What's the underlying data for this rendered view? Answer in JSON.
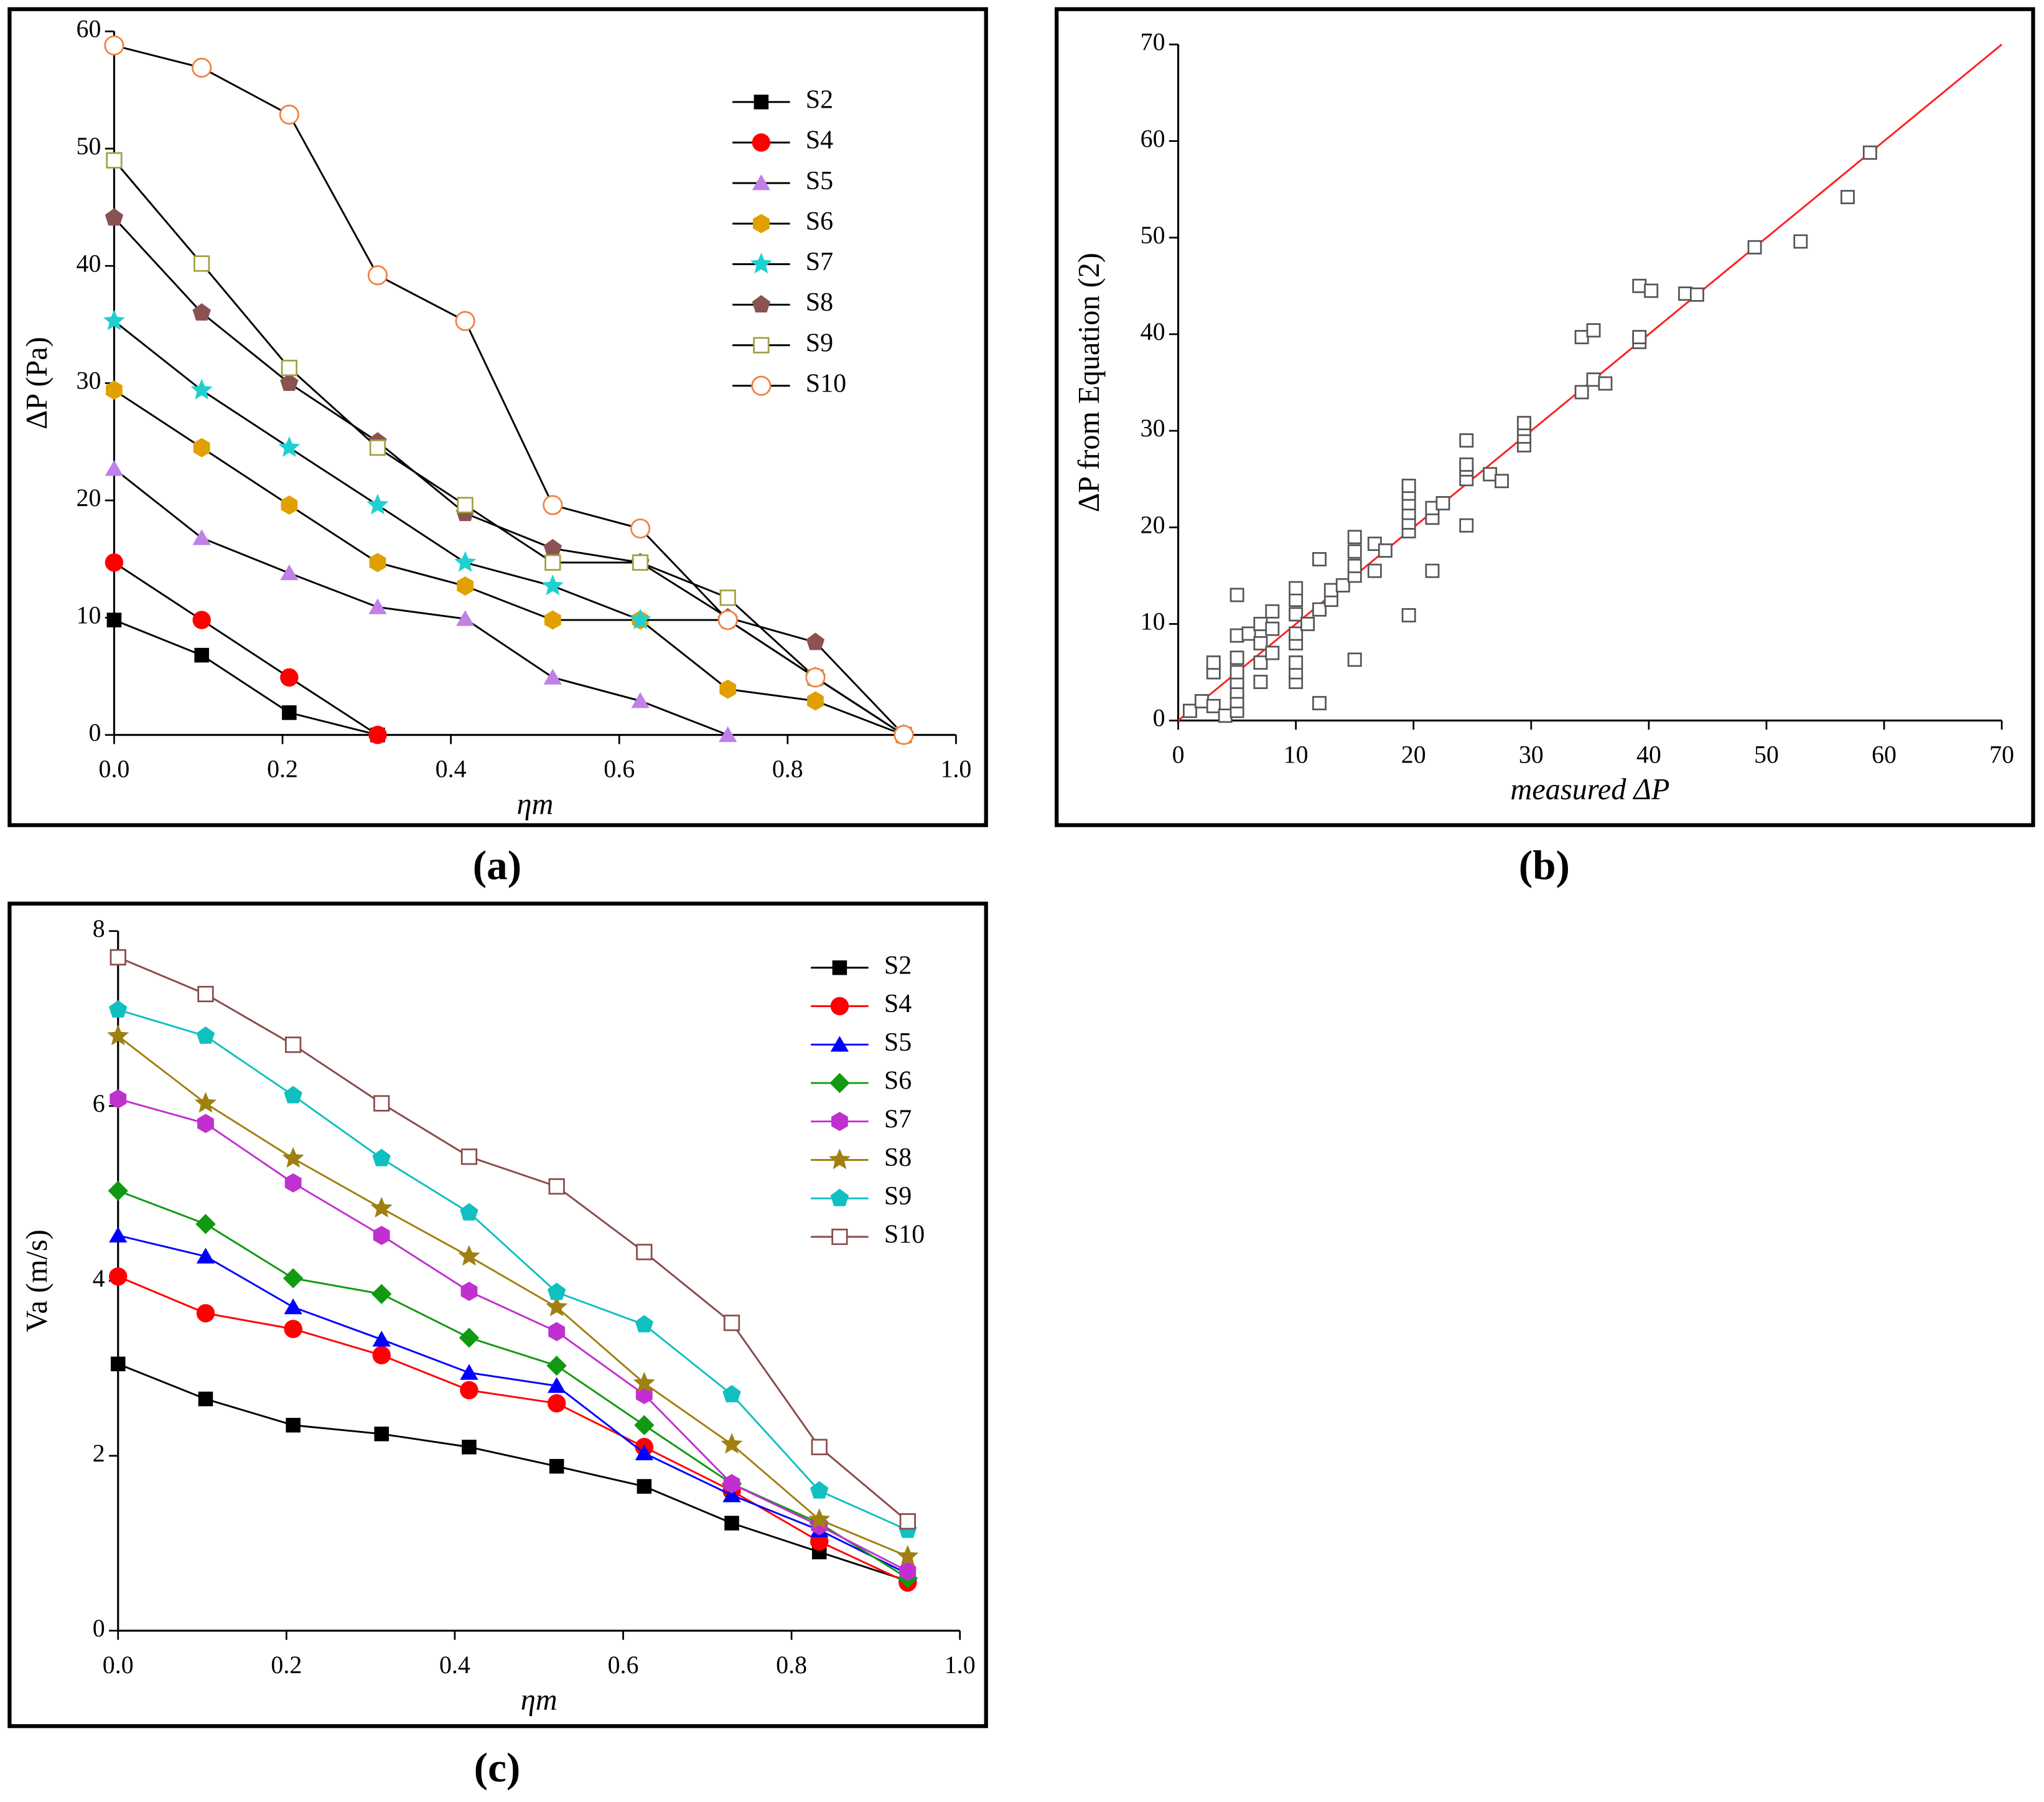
{
  "chart_data": [
    {
      "type": "line",
      "panel_label": "(a)",
      "xlabel": "ηm",
      "ylabel": "ΔP (Pa)",
      "x": [
        0,
        0.104,
        0.208,
        0.313,
        0.417,
        0.521,
        0.625,
        0.729,
        0.833,
        0.938
      ],
      "xlim": [
        0,
        1.0
      ],
      "ylim": [
        0,
        60
      ],
      "xticks": [
        {
          "value": 0,
          "label": "0.0"
        },
        0.2,
        0.4,
        0.6,
        0.8,
        {
          "value": 1,
          "label": "1.0"
        }
      ],
      "yticks": [
        0,
        10,
        20,
        30,
        40,
        50,
        60
      ],
      "legend": "upper right",
      "line_color": "#000000",
      "series": [
        {
          "name": "S2",
          "color": "#000000",
          "marker": "square",
          "filled": true,
          "values": [
            9.8,
            6.8,
            1.9,
            0,
            null,
            null,
            null,
            null,
            null,
            null
          ]
        },
        {
          "name": "S4",
          "color": "#ff0000",
          "marker": "circle",
          "filled": true,
          "values": [
            14.7,
            9.8,
            4.9,
            0,
            null,
            null,
            null,
            null,
            null,
            null
          ]
        },
        {
          "name": "S5",
          "color": "#c080e8",
          "marker": "triangle",
          "filled": true,
          "values": [
            22.7,
            16.8,
            13.8,
            10.9,
            9.9,
            4.9,
            2.9,
            0,
            null,
            null
          ]
        },
        {
          "name": "S6",
          "color": "#e0a000",
          "marker": "hexagon",
          "filled": true,
          "values": [
            29.4,
            24.5,
            19.6,
            14.7,
            12.7,
            9.8,
            9.8,
            3.9,
            2.9,
            0
          ]
        },
        {
          "name": "S7",
          "color": "#20d0d0",
          "marker": "star",
          "filled": true,
          "values": [
            35.3,
            29.4,
            24.5,
            19.6,
            14.7,
            12.7,
            9.8,
            9.8,
            4.9,
            0
          ]
        },
        {
          "name": "S8",
          "color": "#8b5252",
          "marker": "pentagon",
          "filled": true,
          "values": [
            44.1,
            36,
            30,
            25,
            18.9,
            15.9,
            14.7,
            10,
            7.9,
            0
          ]
        },
        {
          "name": "S9",
          "color": "#a0a040",
          "marker": "square",
          "filled": false,
          "values": [
            49,
            40.2,
            31.3,
            24.5,
            19.6,
            14.7,
            14.7,
            11.7,
            4.9,
            0
          ]
        },
        {
          "name": "S10",
          "color": "#f08040",
          "marker": "circle",
          "filled": false,
          "values": [
            58.8,
            56.9,
            52.9,
            39.2,
            35.3,
            19.6,
            17.6,
            9.8,
            4.9,
            0
          ]
        }
      ]
    },
    {
      "type": "scatter",
      "panel_label": "(b)",
      "xlabel": "measured ΔP",
      "ylabel": "ΔP from Equation (2)",
      "xlim": [
        0,
        70
      ],
      "ylim": [
        0,
        70
      ],
      "xticks": [
        0,
        10,
        20,
        30,
        40,
        50,
        60,
        70
      ],
      "yticks": [
        0,
        10,
        20,
        30,
        40,
        50,
        60,
        70
      ],
      "color": "#555555",
      "marker": "square",
      "filled": false,
      "x": [
        1,
        2,
        3,
        3,
        3,
        4,
        5,
        5,
        5,
        5,
        5,
        5,
        5,
        5,
        6,
        7,
        7,
        7,
        7,
        8,
        8,
        8,
        10,
        10,
        10,
        10,
        10,
        10,
        10,
        10,
        11,
        12,
        12,
        12,
        13,
        13,
        14,
        15,
        15,
        15,
        15,
        15,
        16.7,
        16.7,
        17.6,
        19.6,
        19.6,
        19.6,
        19.6,
        19.6,
        19.6,
        19.6,
        21.6,
        21.6,
        21.6,
        22.5,
        24.5,
        24.5,
        24.5,
        24.5,
        24.5,
        26.5,
        27.5,
        29.4,
        29.4,
        29.4,
        29.4,
        34.3,
        34.3,
        35.3,
        35.3,
        36.3,
        39.2,
        39.2,
        39.2,
        40.2,
        43.1,
        44.1,
        49,
        52.9,
        56.9,
        58.8
      ],
      "y": [
        1,
        2,
        1.5,
        5,
        6,
        0.5,
        1,
        2,
        3,
        4,
        5,
        6.5,
        8.8,
        13,
        9,
        4,
        6,
        8,
        10,
        7,
        9.5,
        11.3,
        4,
        5,
        6,
        8,
        9,
        11,
        12.5,
        13.7,
        10,
        1.8,
        11.5,
        16.7,
        12.5,
        13.5,
        14,
        6.3,
        15,
        16,
        17.5,
        19,
        15.5,
        18.3,
        17.6,
        10.9,
        19.6,
        20.5,
        21.5,
        22.5,
        23.5,
        24.3,
        15.5,
        21,
        22,
        22.5,
        20.2,
        25,
        26,
        26.5,
        29,
        25.5,
        24.8,
        28.5,
        29.4,
        30.2,
        30.8,
        34,
        39.7,
        35.3,
        40.4,
        34.9,
        39.2,
        39.7,
        45,
        44.5,
        44.2,
        44.1,
        49,
        49.6,
        54.2,
        58.8
      ],
      "fit_line": {
        "x": [
          0,
          70
        ],
        "y": [
          0,
          70
        ],
        "color": "#ff2020"
      }
    },
    {
      "type": "line",
      "panel_label": "(c)",
      "xlabel": "ηm",
      "ylabel": "Va (m/s)",
      "x": [
        0,
        0.104,
        0.208,
        0.313,
        0.417,
        0.521,
        0.625,
        0.729,
        0.833,
        0.938
      ],
      "xlim": [
        0,
        1.0
      ],
      "ylim": [
        0,
        8
      ],
      "xticks": [
        {
          "value": 0,
          "label": "0.0"
        },
        0.2,
        0.4,
        0.6,
        0.8,
        {
          "value": 1,
          "label": "1.0"
        }
      ],
      "yticks": [
        0,
        2,
        4,
        6,
        8
      ],
      "legend": "upper right",
      "series": [
        {
          "name": "S2",
          "color": "#000000",
          "marker": "square",
          "filled": true,
          "values": [
            3.05,
            2.65,
            2.35,
            2.25,
            2.1,
            1.88,
            1.65,
            1.23,
            0.9,
            0.57
          ]
        },
        {
          "name": "S4",
          "color": "#ff0000",
          "marker": "circle",
          "filled": true,
          "values": [
            4.05,
            3.63,
            3.45,
            3.15,
            2.75,
            2.6,
            2.1,
            1.6,
            1.02,
            0.55
          ]
        },
        {
          "name": "S5",
          "color": "#0000ff",
          "marker": "triangle",
          "filled": true,
          "values": [
            4.52,
            4.28,
            3.7,
            3.33,
            2.95,
            2.8,
            2.03,
            1.55,
            1.15,
            0.65
          ]
        },
        {
          "name": "S6",
          "color": "#119911",
          "marker": "diamond",
          "filled": true,
          "values": [
            5.03,
            4.65,
            4.03,
            3.85,
            3.35,
            3.03,
            2.35,
            1.68,
            1.23,
            0.6
          ]
        },
        {
          "name": "S7",
          "color": "#c030d0",
          "marker": "hexagon",
          "filled": true,
          "values": [
            6.08,
            5.8,
            5.12,
            4.52,
            3.88,
            3.42,
            2.7,
            1.68,
            1.2,
            0.68
          ]
        },
        {
          "name": "S8",
          "color": "#a08010",
          "marker": "star",
          "filled": true,
          "values": [
            6.8,
            6.03,
            5.4,
            4.83,
            4.28,
            3.7,
            2.83,
            2.13,
            1.27,
            0.85
          ]
        },
        {
          "name": "S9",
          "color": "#10c0c0",
          "marker": "pentagon",
          "filled": true,
          "values": [
            7.1,
            6.8,
            6.12,
            5.4,
            4.78,
            3.87,
            3.5,
            2.7,
            1.6,
            1.15
          ]
        },
        {
          "name": "S10",
          "color": "#8b4a4a",
          "marker": "square",
          "filled": false,
          "values": [
            7.7,
            7.28,
            6.7,
            6.03,
            5.42,
            5.08,
            4.33,
            3.52,
            2.1,
            1.25
          ]
        }
      ]
    }
  ]
}
